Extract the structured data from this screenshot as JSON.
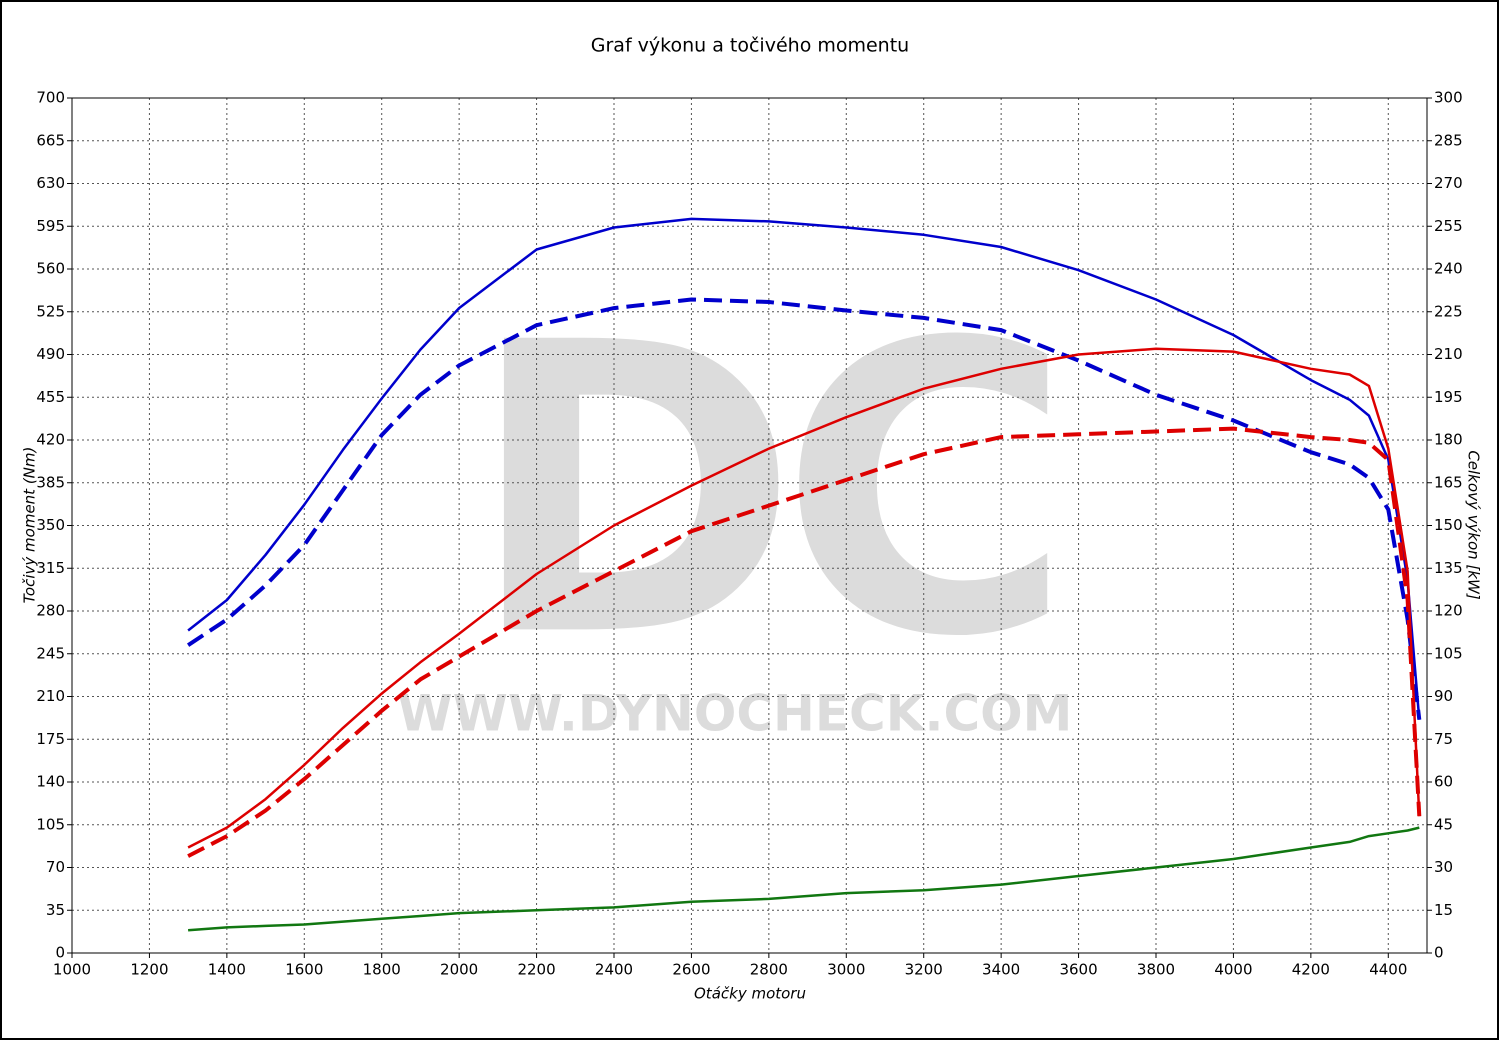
{
  "chart_data": {
    "type": "line",
    "title": "Graf výkonu a točivého momentu",
    "x_label": "Otáčky motoru",
    "y_label": "Točivý moment (Nm)",
    "y2_label": "Celkový výkon [kW]",
    "watermark": {
      "logo": "DC",
      "url": "WWW.DYNOCHECK.COM"
    },
    "xlim": [
      1000,
      4500
    ],
    "xticks": [
      1000,
      1200,
      1400,
      1600,
      1800,
      2000,
      2200,
      2400,
      2600,
      2800,
      3000,
      3200,
      3400,
      3600,
      3800,
      4000,
      4200,
      4400
    ],
    "ylim": [
      0,
      700
    ],
    "yticks": [
      0,
      35,
      70,
      105,
      140,
      175,
      210,
      245,
      280,
      315,
      350,
      385,
      420,
      455,
      490,
      525,
      560,
      595,
      630,
      665,
      700
    ],
    "y2lim": [
      0,
      300
    ],
    "y2ticks": [
      0,
      15,
      30,
      45,
      60,
      75,
      90,
      105,
      120,
      135,
      150,
      165,
      180,
      195,
      210,
      225,
      240,
      255,
      270,
      285,
      300
    ],
    "grid": true,
    "x": [
      1300,
      1400,
      1500,
      1600,
      1700,
      1800,
      1900,
      2000,
      2200,
      2400,
      2600,
      2800,
      3000,
      3200,
      3400,
      3600,
      3800,
      4000,
      4200,
      4300,
      4350,
      4400,
      4450,
      4480
    ],
    "series": [
      {
        "color": "#0000cc",
        "dashed": false,
        "axis": "y",
        "values": [
          264,
          289,
          326,
          367,
          412,
          454,
          494,
          528,
          576,
          594,
          601,
          599,
          594,
          588,
          578,
          559,
          535,
          506,
          469,
          453,
          440,
          404,
          305,
          191
        ]
      },
      {
        "color": "#0000cc",
        "dashed": true,
        "axis": "y",
        "values": [
          252,
          273,
          301,
          334,
          379,
          424,
          457,
          481,
          514,
          528,
          535,
          533,
          526,
          520,
          510,
          485,
          457,
          436,
          410,
          400,
          389,
          363,
          273,
          191
        ]
      },
      {
        "color": "#dd0000",
        "dashed": false,
        "axis": "y2",
        "values": [
          37,
          44,
          54,
          66,
          79,
          91,
          102,
          112,
          133,
          150,
          164,
          177,
          188,
          198,
          205,
          210,
          212,
          211,
          205,
          203,
          199,
          177,
          134,
          48
        ]
      },
      {
        "color": "#dd0000",
        "dashed": true,
        "axis": "y2",
        "values": [
          34,
          41,
          50,
          61,
          73,
          85,
          96,
          104,
          120,
          134,
          148,
          157,
          166,
          175,
          181,
          182,
          183,
          184,
          181,
          180,
          179,
          173,
          124,
          48
        ]
      },
      {
        "color": "#117711",
        "dashed": false,
        "axis": "y2",
        "values": [
          8,
          9,
          9.5,
          10,
          11,
          12,
          13,
          14,
          15,
          16,
          18,
          19,
          21,
          22,
          24,
          27,
          30,
          33,
          37,
          39,
          41,
          42,
          43,
          44
        ]
      }
    ]
  }
}
